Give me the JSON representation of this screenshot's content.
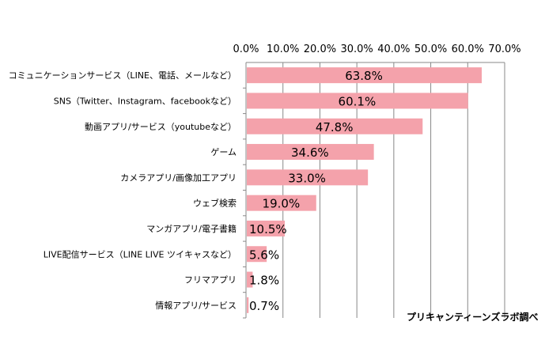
{
  "chart_data": {
    "type": "bar",
    "orientation": "horizontal",
    "categories": [
      "コミュニケーションサービス（LINE、電話、メールなど）",
      "SNS（Twitter、Instagram、facebookなど）",
      "動画アプリ/サービス（youtubeなど）",
      "ゲーム",
      "カメラアプリ/画像加工アプリ",
      "ウェブ検索",
      "マンガアプリ/電子書籍",
      "LIVE配信サービス（LINE LIVE ツイキャスなど）",
      "フリマアプリ",
      "情報アプリ/サービス"
    ],
    "values": [
      63.8,
      60.1,
      47.8,
      34.6,
      33.0,
      19.0,
      10.5,
      5.6,
      1.8,
      0.7
    ],
    "data_labels": [
      "63.8%",
      "60.1%",
      "47.8%",
      "34.6%",
      "33.0%",
      "19.0%",
      "10.5%",
      "5.6%",
      "1.8%",
      "0.7%"
    ],
    "xlim": [
      0,
      70
    ],
    "x_ticks": [
      "0.0%",
      "10.0%",
      "20.0%",
      "30.0%",
      "40.0%",
      "50.0%",
      "60.0%",
      "70.0%"
    ],
    "axis_position": "top",
    "grid": true,
    "bar_color": "#f4a2ab",
    "title": "",
    "xlabel": "",
    "ylabel": ""
  },
  "source_note": "プリキャンティーンズラボ調べ"
}
